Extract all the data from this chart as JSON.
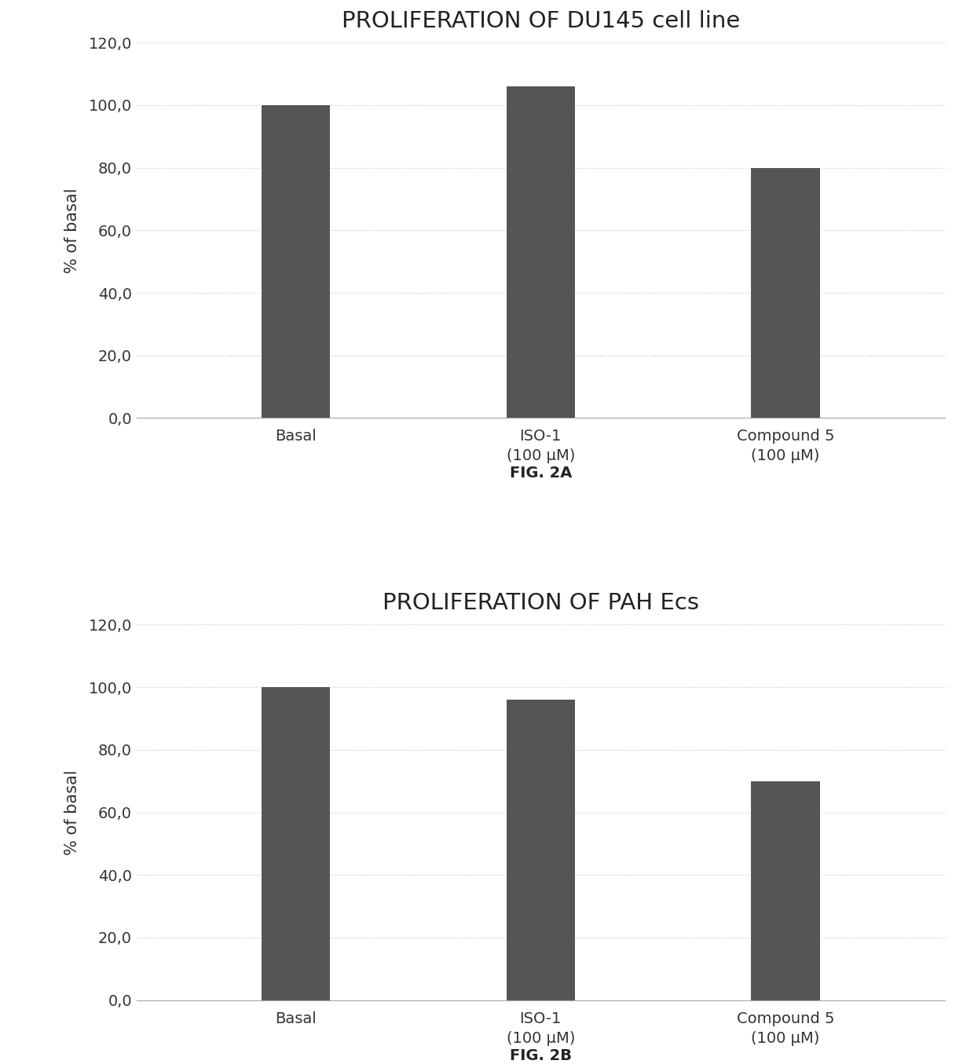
{
  "chart1": {
    "title": "PROLIFERATION OF DU145 cell line",
    "categories": [
      "Basal",
      "ISO-1\n(100 μM)",
      "Compound 5\n(100 μM)"
    ],
    "values": [
      100.0,
      106.0,
      80.0
    ],
    "bar_color": "#555555",
    "ylabel": "% of basal",
    "ylim": [
      0,
      120
    ],
    "yticks": [
      0.0,
      20.0,
      40.0,
      60.0,
      80.0,
      100.0,
      120.0
    ],
    "ytick_labels": [
      "0,0",
      "20,0",
      "40,0",
      "60,0",
      "80,0",
      "100,0",
      "120,0"
    ],
    "fig_label": "FIG. 2A"
  },
  "chart2": {
    "title": "PROLIFERATION OF PAH Ecs",
    "categories": [
      "Basal",
      "ISO-1\n(100 μM)",
      "Compound 5\n(100 μM)"
    ],
    "values": [
      100.0,
      96.0,
      70.0
    ],
    "bar_color": "#555555",
    "ylabel": "% of basal",
    "ylim": [
      0,
      120
    ],
    "yticks": [
      0.0,
      20.0,
      40.0,
      60.0,
      80.0,
      100.0,
      120.0
    ],
    "ytick_labels": [
      "0,0",
      "20,0",
      "40,0",
      "60,0",
      "80,0",
      "100,0",
      "120,0"
    ],
    "fig_label": "FIG. 2B"
  },
  "background_color": "#ffffff",
  "bar_width": 0.28,
  "title_fontsize": 21,
  "label_fontsize": 15,
  "tick_fontsize": 14,
  "fig_label_fontsize": 14,
  "grid_color": "#c8c8c8",
  "grid_linestyle": "dotted"
}
